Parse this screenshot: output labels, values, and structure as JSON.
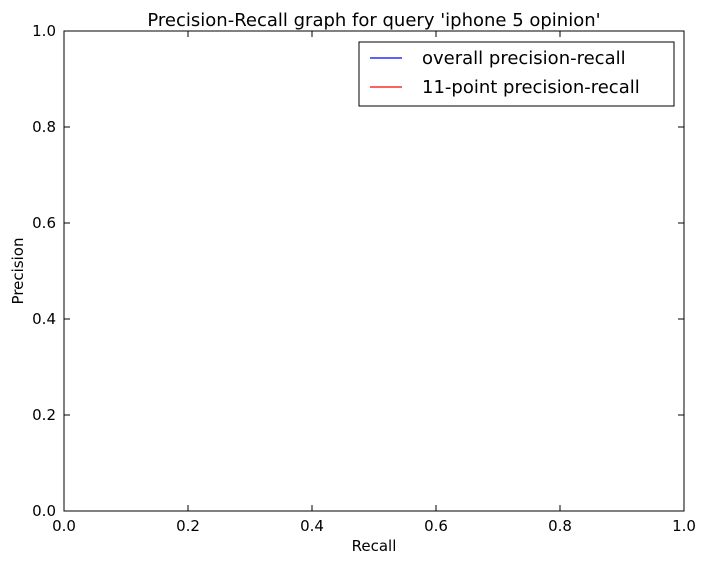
{
  "chart_data": {
    "type": "line",
    "title": "Precision-Recall graph for query 'iphone 5 opinion'",
    "xlabel": "Recall",
    "ylabel": "Precision",
    "xlim": [
      0.0,
      1.0
    ],
    "ylim": [
      0.0,
      1.0
    ],
    "x_ticks": [
      "0.0",
      "0.2",
      "0.4",
      "0.6",
      "0.8",
      "1.0"
    ],
    "y_ticks": [
      "0.0",
      "0.2",
      "0.4",
      "0.6",
      "0.8",
      "1.0"
    ],
    "grid": false,
    "legend_position": "top-right",
    "series": [
      {
        "name": "overall precision-recall",
        "color": "#0000ff",
        "x": [],
        "y": []
      },
      {
        "name": "11-point precision-recall",
        "color": "#ff0000",
        "x": [],
        "y": []
      }
    ]
  }
}
